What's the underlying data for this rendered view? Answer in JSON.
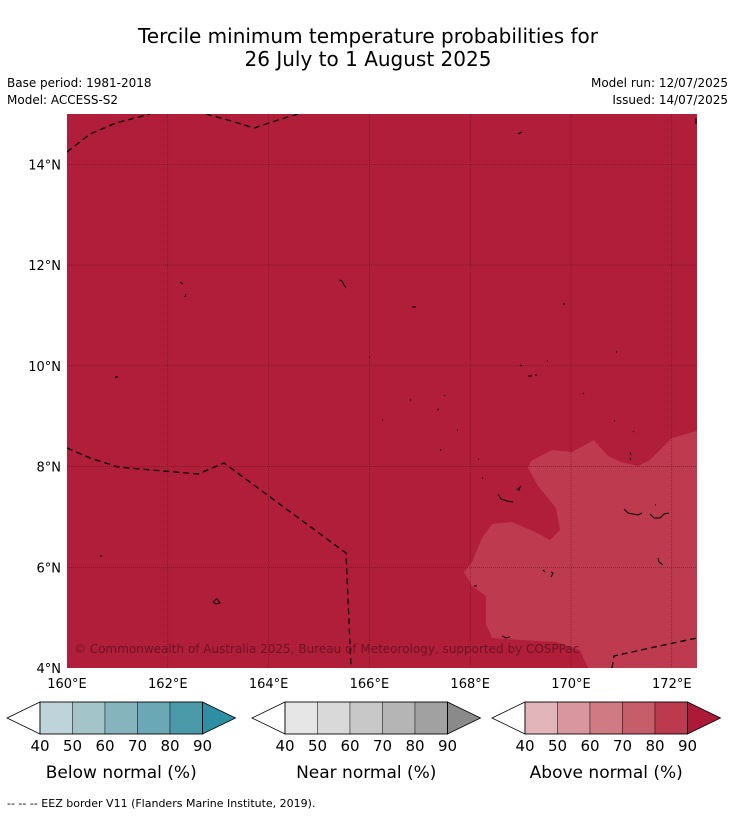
{
  "title_line1": "Tercile minimum temperature probabilities for",
  "title_line2": "26 July to 1 August 2025",
  "base_period": "Base period: 1981-2018",
  "model": "Model: ACCESS-S2",
  "model_run": "Model run: 12/07/2025",
  "issued": "Issued: 14/07/2025",
  "copyright": "© Commonwealth of Australia 2025, Bureau of Meteorology, supported by COSPPac",
  "footnote": "--  --  -- EEZ border V11 (Flanders Marine Institute, 2019).",
  "colors": {
    "above_90": "#b01e3a",
    "above_80": "#bd3a4f",
    "eez_line": "#000000"
  },
  "chart_data": {
    "type": "heatmap",
    "xlim": [
      160,
      172.5
    ],
    "ylim": [
      4,
      15
    ],
    "x_ticks": [
      "160°E",
      "162°E",
      "164°E",
      "166°E",
      "168°E",
      "170°E",
      "172°E"
    ],
    "y_ticks": [
      "4°N",
      "6°N",
      "8°N",
      "10°N",
      "12°N",
      "14°N"
    ],
    "x_tick_values": [
      160,
      162,
      164,
      166,
      168,
      170,
      172
    ],
    "y_tick_values": [
      4,
      6,
      8,
      10,
      12,
      14
    ],
    "dominant_category": "Above normal",
    "dominant_probability_band": "80-90+",
    "southeast_region_band": "80-90",
    "legends": [
      {
        "name": "Below normal (%)",
        "ticks": [
          "40",
          "50",
          "60",
          "70",
          "80",
          "90"
        ],
        "colors": [
          "#bfd4da",
          "#a3c4c9",
          "#86b4bd",
          "#6aa8b5",
          "#4a9aaa",
          "#2e8ea3"
        ]
      },
      {
        "name": "Near normal (%)",
        "ticks": [
          "40",
          "50",
          "60",
          "70",
          "80",
          "90"
        ],
        "colors": [
          "#e6e6e6",
          "#d9d9d9",
          "#c8c8c8",
          "#b5b5b5",
          "#a1a1a1",
          "#8a8a8a"
        ]
      },
      {
        "name": "Above normal (%)",
        "ticks": [
          "40",
          "50",
          "60",
          "70",
          "80",
          "90"
        ],
        "colors": [
          "#e2b5bb",
          "#d9969e",
          "#d07a84",
          "#c65e6a",
          "#bb3a4e",
          "#ad1a38"
        ]
      }
    ]
  }
}
